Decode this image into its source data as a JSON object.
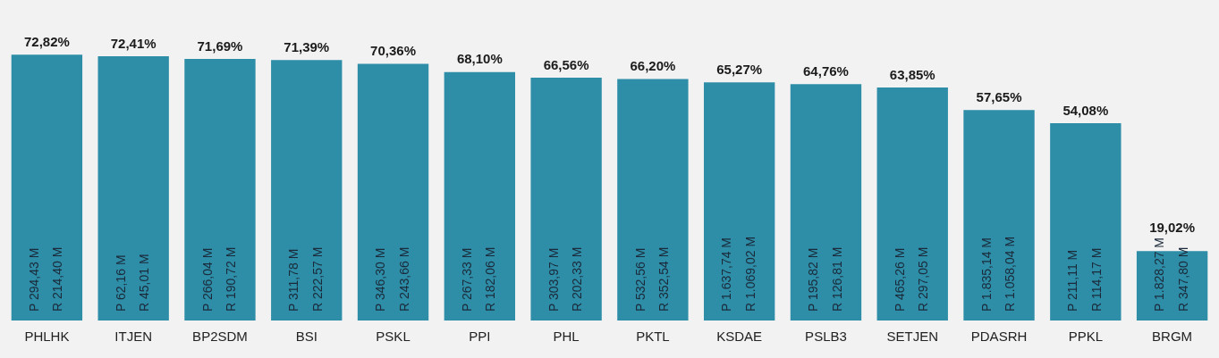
{
  "chart_data": {
    "type": "bar",
    "categories": [
      "PHLHK",
      "ITJEN",
      "BP2SDM",
      "BSI",
      "PSKL",
      "PPI",
      "PHL",
      "PKTL",
      "KSDAE",
      "PSLB3",
      "SETJEN",
      "PDASRH",
      "PPKL",
      "BRGM"
    ],
    "values": [
      72.82,
      72.41,
      71.69,
      71.39,
      70.36,
      68.1,
      66.56,
      66.2,
      65.27,
      64.76,
      63.85,
      57.65,
      54.08,
      19.02
    ],
    "value_labels": [
      "72,82%",
      "72,41%",
      "71,69%",
      "71,39%",
      "70,36%",
      "68,10%",
      "66,56%",
      "66,20%",
      "65,27%",
      "64,76%",
      "63,85%",
      "57,65%",
      "54,08%",
      "19,02%"
    ],
    "color": "#2e8ea8",
    "grid": false,
    "legend": false,
    "tick_labels": "x",
    "annotations": [
      "P 294,43 M",
      "R 214,40 M",
      "P 62,16 M",
      "R 45,01 M",
      "P 266,04 M",
      "R 190,72 M",
      "P 311,78 M",
      "R 222,57 M",
      "P 346,30 M",
      "R 243,66 M",
      "P 267,33 M",
      "R 182,06 M",
      "P 303,97 M",
      "R 202,33 M",
      "P 532,56 M",
      "R 352,54 M",
      "P 1.637,74 M",
      "R 1.069,02 M",
      "P 195,82 M",
      "R 126,81 M",
      "P 465,26 M",
      "R 297,05 M",
      "P 1.835,14 M",
      "R 1.058,04 M",
      "P 211,11 M",
      "R 114,17 M",
      "P 1.828,27 M",
      "R 347,80 M"
    ]
  }
}
